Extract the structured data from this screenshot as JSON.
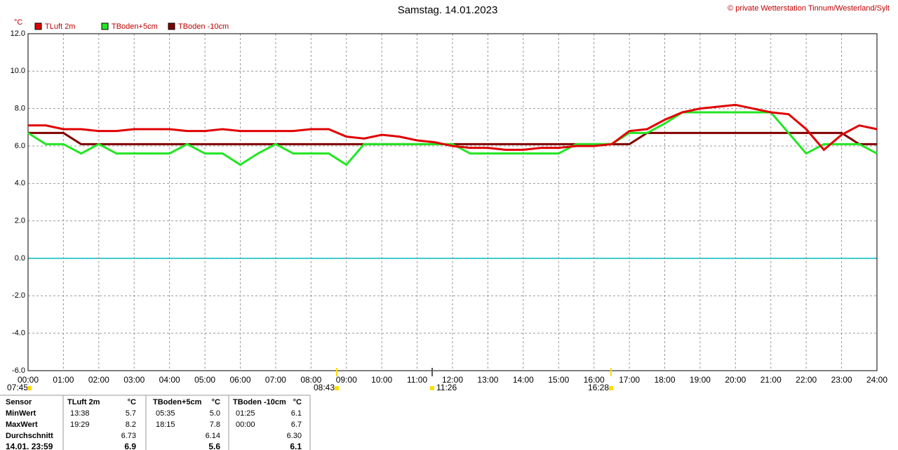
{
  "chart_data": {
    "type": "line",
    "title": "Samstag. 14.01.2023",
    "copyright": "© private Wetterstation Tinnum/Westerland/Sylt",
    "y_label": "°C",
    "x": [
      0,
      0.5,
      1,
      1.5,
      2,
      2.5,
      3,
      3.5,
      4,
      4.5,
      5,
      5.5,
      6,
      6.5,
      7,
      7.5,
      8,
      8.5,
      9,
      9.5,
      10,
      10.5,
      11,
      11.5,
      12,
      12.5,
      13,
      13.5,
      14,
      14.5,
      15,
      15.5,
      16,
      16.5,
      17,
      17.5,
      18,
      18.5,
      19,
      19.5,
      20,
      20.5,
      21,
      21.5,
      22,
      22.5,
      23,
      23.5,
      24
    ],
    "series": [
      {
        "name": "TLuft 2m",
        "color": "#e00000",
        "values": [
          7.1,
          7.1,
          6.9,
          6.9,
          6.8,
          6.8,
          6.9,
          6.9,
          6.9,
          6.8,
          6.8,
          6.9,
          6.8,
          6.8,
          6.8,
          6.8,
          6.9,
          6.9,
          6.5,
          6.4,
          6.6,
          6.5,
          6.3,
          6.2,
          6.0,
          5.9,
          5.9,
          5.8,
          5.8,
          5.9,
          5.9,
          6.0,
          6.0,
          6.1,
          6.8,
          6.9,
          7.4,
          7.8,
          8.0,
          8.1,
          8.2,
          8.0,
          7.8,
          7.7,
          6.9,
          5.8,
          6.6,
          7.1,
          6.9
        ]
      },
      {
        "name": "TBoden+5cm",
        "color": "#22e622",
        "values": [
          6.7,
          6.1,
          6.1,
          5.6,
          6.1,
          5.6,
          5.6,
          5.6,
          5.6,
          6.1,
          5.6,
          5.6,
          5.0,
          5.6,
          6.1,
          5.6,
          5.6,
          5.6,
          5.0,
          6.1,
          6.1,
          6.1,
          6.1,
          6.1,
          6.1,
          5.6,
          5.6,
          5.6,
          5.6,
          5.6,
          5.6,
          6.1,
          6.1,
          6.1,
          6.7,
          6.7,
          7.2,
          7.8,
          7.8,
          7.8,
          7.8,
          7.8,
          7.8,
          6.7,
          5.6,
          6.1,
          6.1,
          6.1,
          5.6
        ]
      },
      {
        "name": "TBoden -10cm",
        "color": "#800000",
        "values": [
          6.7,
          6.7,
          6.7,
          6.1,
          6.1,
          6.1,
          6.1,
          6.1,
          6.1,
          6.1,
          6.1,
          6.1,
          6.1,
          6.1,
          6.1,
          6.1,
          6.1,
          6.1,
          6.1,
          6.1,
          6.1,
          6.1,
          6.1,
          6.1,
          6.1,
          6.1,
          6.1,
          6.1,
          6.1,
          6.1,
          6.1,
          6.1,
          6.1,
          6.1,
          6.1,
          6.7,
          6.7,
          6.7,
          6.7,
          6.7,
          6.7,
          6.7,
          6.7,
          6.7,
          6.7,
          6.7,
          6.7,
          6.1,
          6.1
        ]
      }
    ],
    "xlim": [
      0,
      24
    ],
    "xticks": [
      {
        "value": 0,
        "label": "00:00"
      },
      {
        "value": 1,
        "label": "01:00"
      },
      {
        "value": 2,
        "label": "02:00"
      },
      {
        "value": 3,
        "label": "03:00"
      },
      {
        "value": 4,
        "label": "04:00"
      },
      {
        "value": 5,
        "label": "05:00"
      },
      {
        "value": 6,
        "label": "06:00"
      },
      {
        "value": 7,
        "label": "07:00"
      },
      {
        "value": 8,
        "label": "08:00"
      },
      {
        "value": 9,
        "label": "09:00"
      },
      {
        "value": 10,
        "label": "10:00"
      },
      {
        "value": 11,
        "label": "11:00"
      },
      {
        "value": 12,
        "label": "12:00"
      },
      {
        "value": 13,
        "label": "13:00"
      },
      {
        "value": 14,
        "label": "14:00"
      },
      {
        "value": 15,
        "label": "15:00"
      },
      {
        "value": 16,
        "label": "16:00"
      },
      {
        "value": 17,
        "label": "17:00"
      },
      {
        "value": 18,
        "label": "18:00"
      },
      {
        "value": 19,
        "label": "19:00"
      },
      {
        "value": 20,
        "label": "20:00"
      },
      {
        "value": 21,
        "label": "21:00"
      },
      {
        "value": 22,
        "label": "22:00"
      },
      {
        "value": 23,
        "label": "23:00"
      },
      {
        "value": 24,
        "label": "24:00"
      }
    ],
    "ylim": [
      -6,
      12
    ],
    "yticks": [
      {
        "value": -6,
        "label": "-6.0"
      },
      {
        "value": -4,
        "label": "-4.0"
      },
      {
        "value": -2,
        "label": "-2.0"
      },
      {
        "value": 0,
        "label": "0.0"
      },
      {
        "value": 2,
        "label": "2.0"
      },
      {
        "value": 4,
        "label": "4.0"
      },
      {
        "value": 6,
        "label": "6.0"
      },
      {
        "value": 8,
        "label": "8.0"
      },
      {
        "value": 10,
        "label": "10.0"
      },
      {
        "value": 12,
        "label": "12.0"
      }
    ],
    "grid": true
  },
  "sun_markers": [
    "07:45",
    "08:43",
    "11:26",
    "16:28"
  ],
  "table": {
    "rows": [
      [
        "Sensor",
        "TLuft 2m",
        "°C",
        "TBoden+5cm",
        "°C",
        "TBoden -10cm",
        "°C"
      ],
      [
        "MinWert",
        "13:38",
        "5.7",
        "05:35",
        "5.0",
        "01:25",
        "6.1"
      ],
      [
        "MaxWert",
        "19:29",
        "8.2",
        "18:15",
        "7.8",
        "00:00",
        "6.7"
      ],
      [
        "Durchschnitt",
        null,
        "6.73",
        null,
        "6.14",
        null,
        "6.30"
      ],
      [
        "14.01. 23:59",
        null,
        "6.9",
        null,
        "5.6",
        null,
        "6.1"
      ]
    ]
  }
}
